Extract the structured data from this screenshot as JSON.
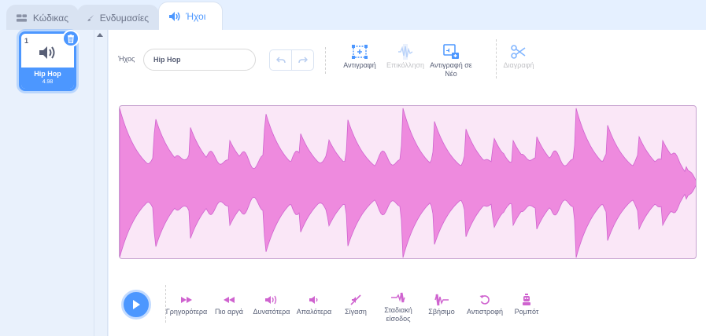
{
  "tabs": [
    {
      "label": "Κώδικας",
      "icon": "code-icon"
    },
    {
      "label": "Ενδυμασίες",
      "icon": "brush-icon"
    },
    {
      "label": "Ήχοι",
      "icon": "speaker-icon"
    }
  ],
  "sound_list": [
    {
      "number": "1",
      "name": "Hip Hop",
      "duration": "4.98"
    }
  ],
  "editor": {
    "name_label": "Ήχος",
    "name_value": "Hip Hop",
    "tools": {
      "copy": "Αντιγραφή",
      "paste": "Επικόλληση",
      "copy_new": "Αντιγραφή σε Νέο",
      "delete": "Διαγραφή"
    },
    "effects": {
      "faster": "Γρηγορότερα",
      "slower": "Πιο αργά",
      "louder": "Δυνατότερα",
      "softer": "Απαλότερα",
      "mute": "Σίγαση",
      "fade_in": "Σταδιακή είσοδος",
      "fade_out": "Σβήσιμο",
      "reverse": "Αντιστροφή",
      "robot": "Ρομπότ"
    }
  },
  "colors": {
    "accent": "#4c97ff",
    "sound_pink": "#cf63cf",
    "wave_fill": "#ee8ade",
    "wave_bg": "#fae7f7"
  }
}
